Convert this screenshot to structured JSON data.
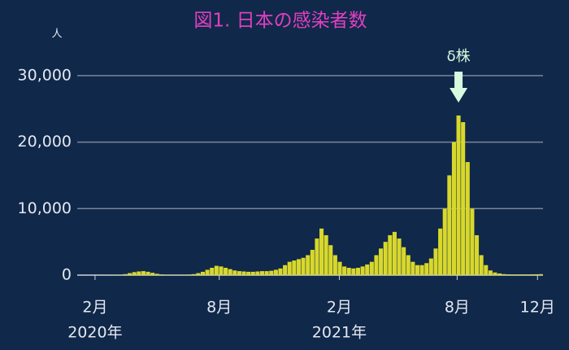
{
  "chart_data": {
    "type": "bar",
    "title": "図1.  日本の感染者数",
    "y_unit": "人",
    "annotation": "δ株",
    "color": "#d8d82c",
    "categories": [
      null,
      null,
      null,
      null,
      null,
      null,
      null,
      null,
      null,
      null,
      null,
      null,
      null,
      null,
      null,
      null,
      null,
      null,
      null,
      null,
      null,
      null,
      null,
      null,
      null,
      null,
      null,
      null,
      null,
      null,
      null,
      null,
      null,
      null,
      null,
      null,
      null,
      null,
      null,
      null,
      null,
      null,
      null,
      null,
      null,
      null,
      null,
      null,
      null,
      null,
      null,
      null,
      null,
      null,
      null,
      null,
      null,
      null,
      null,
      null,
      null,
      null,
      null,
      null,
      null,
      null,
      null,
      null,
      null,
      null,
      null,
      null,
      null,
      null,
      null,
      null,
      null,
      null,
      null,
      null,
      null,
      null,
      null,
      null,
      null,
      null,
      null,
      null,
      null,
      null,
      null,
      null,
      null,
      null,
      null,
      null,
      null,
      null,
      null,
      null,
      null,
      null
    ],
    "values": [
      0,
      0,
      0,
      0,
      5,
      10,
      20,
      30,
      40,
      60,
      150,
      300,
      450,
      550,
      600,
      500,
      350,
      200,
      100,
      50,
      40,
      40,
      40,
      50,
      80,
      150,
      300,
      500,
      800,
      1100,
      1400,
      1300,
      1100,
      900,
      700,
      600,
      550,
      500,
      500,
      550,
      600,
      600,
      650,
      800,
      1000,
      1500,
      2000,
      2200,
      2400,
      2600,
      3000,
      3800,
      5500,
      7000,
      6000,
      4500,
      3000,
      2000,
      1300,
      1100,
      1000,
      1100,
      1300,
      1600,
      2000,
      3000,
      4000,
      5000,
      6000,
      6500,
      5500,
      4200,
      3000,
      2000,
      1500,
      1500,
      1800,
      2500,
      4000,
      7000,
      10000,
      15000,
      20000,
      24000,
      23000,
      17000,
      10000,
      6000,
      3000,
      1500,
      700,
      400,
      250,
      150,
      120,
      100,
      100,
      110,
      110,
      120,
      130,
      150
    ],
    "ylim": [
      0,
      35000
    ],
    "yticks": [
      0,
      {
        "value": 10000,
        "label": "10,000"
      },
      {
        "value": 20000,
        "label": "20,000"
      },
      {
        "value": 30000,
        "label": "30,000"
      }
    ],
    "xticks": [
      {
        "value": 3.4,
        "label": "2月"
      },
      {
        "value": 30.6,
        "label": "8月"
      },
      {
        "value": 56.9,
        "label": "2月"
      },
      {
        "value": 82.7,
        "label": "8月"
      },
      {
        "value": 100.3,
        "label": "12月"
      }
    ],
    "xyears": [
      {
        "value": 3.4,
        "label": "2020年"
      },
      {
        "value": 56.9,
        "label": "2021年"
      }
    ],
    "annotation_x": 83,
    "grid": true
  }
}
